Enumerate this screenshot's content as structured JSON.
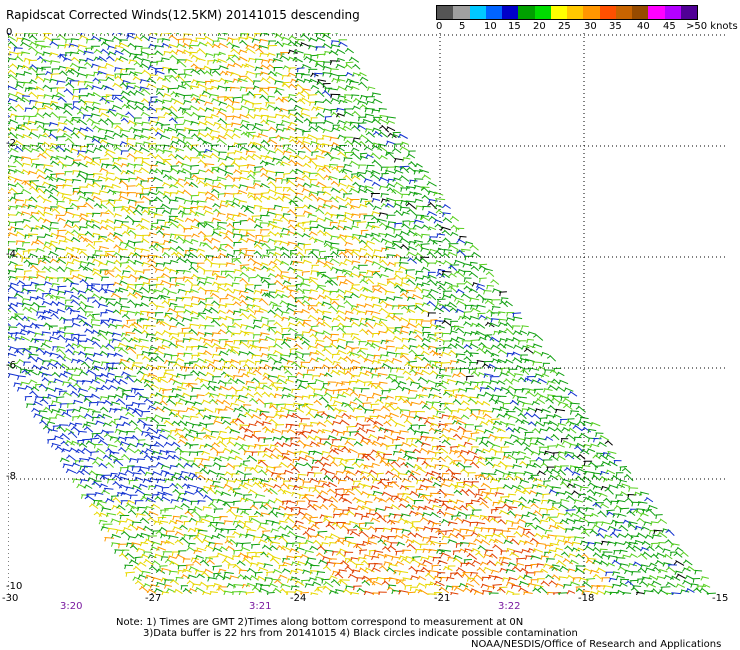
{
  "title": "Rapidscat Corrected Winds(12.5KM) 20141015 descending",
  "legend": {
    "colors": [
      "#555555",
      "#a0a0a0",
      "#00c8ff",
      "#0064ff",
      "#0000c8",
      "#00a000",
      "#00dc00",
      "#ffff00",
      "#ffc800",
      "#ff9600",
      "#ff5000",
      "#c86400",
      "#964b00",
      "#ff00ff",
      "#b400ff",
      "#500096"
    ],
    "labels": [
      "0",
      "5",
      "10",
      "15",
      "20",
      "25",
      "30",
      "35",
      "40",
      "45",
      ">50 knots"
    ]
  },
  "lat_labels": [
    "0",
    "-2",
    "-4",
    "-6",
    "-8",
    "-10"
  ],
  "lon_labels": [
    "-30",
    "-27",
    "-24",
    "-21",
    "-18",
    "-15"
  ],
  "time_labels": [
    "3:20",
    "3:21",
    "3:22"
  ],
  "wind_palette": {
    "blue": "#1030d0",
    "green": "#10a010",
    "lightgreen": "#58d020",
    "yellow": "#e8d800",
    "orange": "#ff9900",
    "red": "#e04000",
    "black": "#000000"
  },
  "notes": {
    "line1": "Note: 1) Times are GMT 2)Times along bottom correspond to measurement at 0N",
    "line2": "3)Data buffer is 22 hrs from 20141015 4) Black circles indicate possible contamination",
    "credit": "NOAA/NESDIS/Office of Research and Applications"
  }
}
